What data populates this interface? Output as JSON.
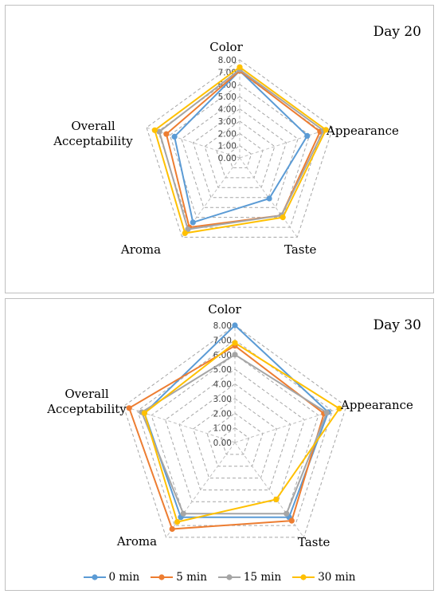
{
  "legend": [
    {
      "name": "0 min",
      "color": "#5B9BD5"
    },
    {
      "name": "5 min",
      "color": "#ED7D31"
    },
    {
      "name": "15 min",
      "color": "#A5A5A5"
    },
    {
      "name": "30 min",
      "color": "#FFC000"
    }
  ],
  "chart_data": [
    {
      "type": "radar",
      "title": "Day 20",
      "axes": [
        "Color",
        "Appearance",
        "Taste",
        "Aroma",
        "Overall Acceptability"
      ],
      "ticks": [
        "0.00",
        "1.00",
        "2.00",
        "3.00",
        "4.00",
        "5.00",
        "6.00",
        "7.00",
        "8.00"
      ],
      "range": [
        0,
        8
      ],
      "series": [
        {
          "name": "0 min",
          "color": "#5B9BD5",
          "values": [
            7.1,
            5.8,
            4.1,
            6.5,
            5.6
          ]
        },
        {
          "name": "5 min",
          "color": "#ED7D31",
          "values": [
            7.1,
            6.9,
            5.8,
            7.0,
            6.3
          ]
        },
        {
          "name": "15 min",
          "color": "#A5A5A5",
          "values": [
            7.2,
            7.2,
            5.8,
            7.2,
            6.9
          ]
        },
        {
          "name": "30 min",
          "color": "#FFC000",
          "values": [
            7.4,
            7.4,
            6.0,
            7.6,
            7.3
          ]
        }
      ]
    },
    {
      "type": "radar",
      "title": "Day 30",
      "axes": [
        "Color",
        "Appearance",
        "Taste",
        "Aroma",
        "Overall Acceptability"
      ],
      "ticks": [
        "0.00",
        "1.00",
        "2.00",
        "3.00",
        "4.00",
        "5.00",
        "6.00",
        "7.00",
        "8.00"
      ],
      "range": [
        0,
        8
      ],
      "series": [
        {
          "name": "0 min",
          "color": "#5B9BD5",
          "values": [
            8.0,
            6.7,
            6.3,
            6.3,
            6.5
          ]
        },
        {
          "name": "5 min",
          "color": "#ED7D31",
          "values": [
            6.6,
            6.4,
            6.6,
            7.3,
            7.6
          ]
        },
        {
          "name": "15 min",
          "color": "#A5A5A5",
          "values": [
            6.0,
            6.6,
            6.0,
            6.0,
            6.7
          ]
        },
        {
          "name": "30 min",
          "color": "#FFC000",
          "values": [
            6.8,
            7.5,
            4.8,
            6.7,
            6.5
          ]
        }
      ]
    }
  ]
}
